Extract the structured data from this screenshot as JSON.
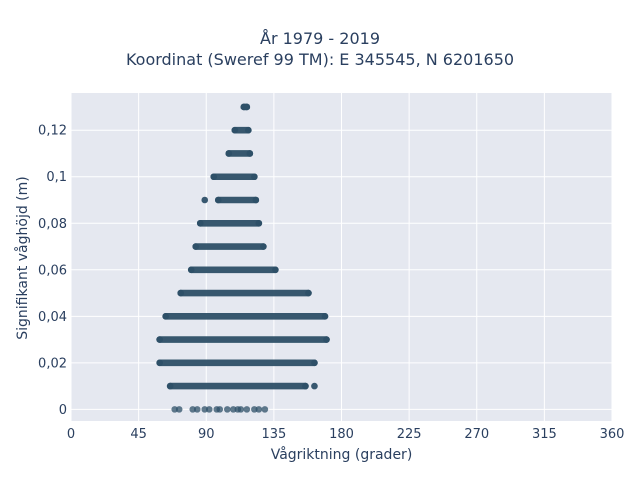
{
  "chart_data": {
    "type": "scatter",
    "title": "År 1979 - 2019",
    "subtitle": "Koordinat (Sweref 99 TM): E 345545, N 6201650",
    "xlabel": "Vågriktning (grader)",
    "ylabel": "Signifikant våghöjd (m)",
    "xlim": [
      0,
      360
    ],
    "ylim": [
      -0.005,
      0.136
    ],
    "x_ticks": [
      0,
      45,
      90,
      135,
      180,
      225,
      270,
      315,
      360
    ],
    "y_ticks": [
      0,
      0.02,
      0.04,
      0.06,
      0.08,
      0.1,
      0.12
    ],
    "y_tick_labels": [
      "0",
      "0,02",
      "0,04",
      "0,06",
      "0,08",
      "0,1",
      "0,12"
    ],
    "grid": true,
    "legend": "none",
    "bands": [
      {
        "y": 0.13,
        "x_min": 115,
        "x_max": 117
      },
      {
        "y": 0.12,
        "x_min": 109,
        "x_max": 118
      },
      {
        "y": 0.11,
        "x_min": 105,
        "x_max": 119
      },
      {
        "y": 0.1,
        "x_min": 95,
        "x_max": 122
      },
      {
        "y": 0.09,
        "x_min": 98,
        "x_max": 123
      },
      {
        "y": 0.08,
        "x_min": 86,
        "x_max": 125
      },
      {
        "y": 0.07,
        "x_min": 83,
        "x_max": 128
      },
      {
        "y": 0.06,
        "x_min": 80,
        "x_max": 136
      },
      {
        "y": 0.05,
        "x_min": 73,
        "x_max": 158
      },
      {
        "y": 0.04,
        "x_min": 63,
        "x_max": 169
      },
      {
        "y": 0.03,
        "x_min": 59,
        "x_max": 170
      },
      {
        "y": 0.02,
        "x_min": 59,
        "x_max": 162
      },
      {
        "y": 0.01,
        "x_min": 66,
        "x_max": 156
      }
    ],
    "isolated_points": [
      {
        "x": 89,
        "y": 0.09
      },
      {
        "x": 162,
        "y": 0.01
      },
      {
        "x": 69,
        "y": 0
      },
      {
        "x": 72,
        "y": 0
      },
      {
        "x": 81,
        "y": 0
      },
      {
        "x": 84,
        "y": 0
      },
      {
        "x": 89,
        "y": 0
      },
      {
        "x": 92,
        "y": 0
      },
      {
        "x": 97,
        "y": 0
      },
      {
        "x": 99,
        "y": 0
      },
      {
        "x": 104,
        "y": 0
      },
      {
        "x": 108,
        "y": 0
      },
      {
        "x": 111,
        "y": 0
      },
      {
        "x": 113,
        "y": 0
      },
      {
        "x": 117,
        "y": 0
      },
      {
        "x": 122,
        "y": 0
      },
      {
        "x": 125,
        "y": 0
      },
      {
        "x": 129,
        "y": 0
      }
    ],
    "colors": {
      "marker": "#2e5068",
      "plot_bg": "#e5e8f0",
      "grid": "#ffffff"
    }
  }
}
